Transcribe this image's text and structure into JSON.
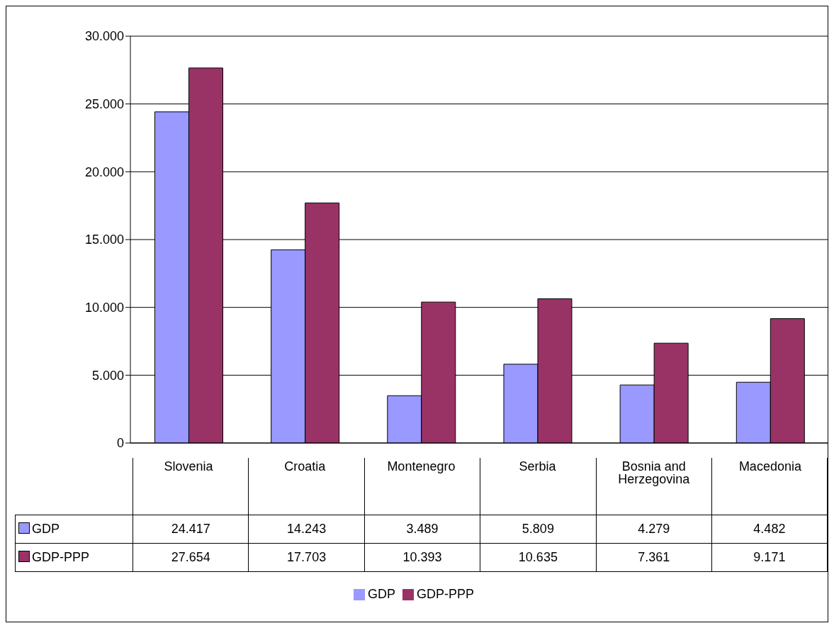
{
  "chart_data": {
    "type": "bar",
    "categories": [
      "Slovenia",
      "Croatia",
      "Montenegro",
      "Serbia",
      "Bosnia and Herzegovina",
      "Macedonia"
    ],
    "series": [
      {
        "name": "GDP",
        "color": "#9999ff",
        "values": [
          24417,
          14243,
          3489,
          5809,
          4279,
          4482
        ],
        "value_labels": [
          "24.417",
          "14.243",
          "3.489",
          "5.809",
          "4.279",
          "4.482"
        ]
      },
      {
        "name": "GDP-PPP",
        "color": "#993366",
        "values": [
          27654,
          17703,
          10393,
          10635,
          7361,
          9171
        ],
        "value_labels": [
          "27.654",
          "17.703",
          "10.393",
          "10.635",
          "7.361",
          "9.171"
        ]
      }
    ],
    "ylim": [
      0,
      30000
    ],
    "yticks": [
      {
        "value": 0,
        "label": "0"
      },
      {
        "value": 5000,
        "label": "5.000"
      },
      {
        "value": 10000,
        "label": "10.000"
      },
      {
        "value": 15000,
        "label": "15.000"
      },
      {
        "value": 20000,
        "label": "20.000"
      },
      {
        "value": 25000,
        "label": "25.000"
      },
      {
        "value": 30000,
        "label": "30.000"
      }
    ],
    "grid": "y",
    "legend": "bottom"
  }
}
